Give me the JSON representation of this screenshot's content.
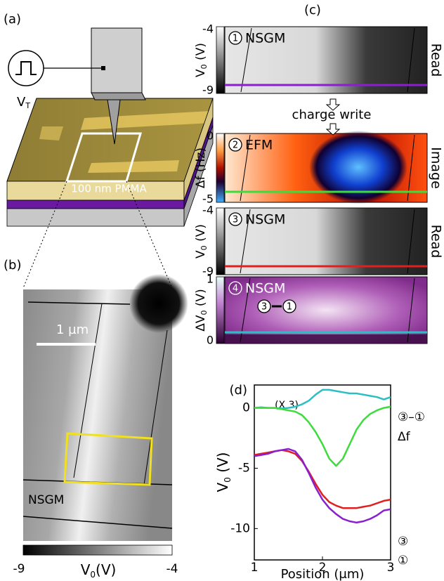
{
  "figure": {
    "a": {
      "label": "(a)",
      "pulse": "V",
      "pulse_sub": "T",
      "layer": "100 nm PMMA"
    },
    "b": {
      "label": "(b)",
      "scale_bar": "1 µm",
      "mode": "NSGM",
      "colorbar": {
        "min": -9,
        "max": -4,
        "title": "V",
        "title_sub": "0",
        "title_unit": "(V)"
      }
    },
    "c": {
      "label": "(c)",
      "step": "charge write",
      "rows": [
        {
          "number": "1",
          "mode": "NSGM",
          "action": "Read",
          "axis": "V",
          "axis_sub": "0",
          "axis_unit": " (V)",
          "max": -4,
          "min": -9
        },
        {
          "number": "2",
          "mode": "EFM",
          "action": "Image",
          "axis": "Δf (Hz)",
          "max": 0,
          "min": -5
        },
        {
          "number": "3",
          "mode": "NSGM",
          "action": "Read",
          "axis": "V",
          "axis_sub": "0",
          "axis_unit": " (V)",
          "max": -4,
          "min": -9
        },
        {
          "number": "4",
          "mode": "NSGM",
          "difference": [
            "3",
            "1"
          ],
          "axis": "ΔV",
          "axis_sub": "0",
          "axis_unit": " (V)",
          "max": 1,
          "min": 0
        }
      ]
    }
  },
  "chart_data": {
    "type": "line",
    "label": "(d)",
    "x_label": "Position (μm)",
    "y_label": "V",
    "y_label_sub": "0",
    "y_label_unit": " (V)",
    "annotation": "(X 3)",
    "x": [
      1,
      1.1,
      1.2,
      1.3,
      1.4,
      1.5,
      1.6,
      1.7,
      1.8,
      1.9,
      2,
      2.1,
      2.2,
      2.3,
      2.4,
      2.5,
      2.6,
      2.7,
      2.8,
      2.9,
      3
    ],
    "series": [
      {
        "name": "③–①",
        "color": "#2bbfc4",
        "values": [
          0,
          0.05,
          0,
          0,
          -0.05,
          0,
          0.1,
          0.3,
          0.6,
          1.1,
          1.5,
          1.5,
          1.4,
          1.3,
          1.2,
          1.2,
          1.1,
          1.0,
          0.9,
          0.7,
          0.9
        ]
      },
      {
        "name": "Δf",
        "color": "#3ddc3d",
        "values": [
          0,
          0,
          0,
          0,
          -0.1,
          -0.2,
          -0.3,
          -0.6,
          -1.2,
          -2,
          -3,
          -4.2,
          -4.8,
          -4.2,
          -3,
          -1.8,
          -1,
          -0.5,
          -0.2,
          0,
          0.1
        ]
      },
      {
        "name": "③",
        "color": "#e02020",
        "values": [
          -3.9,
          -3.8,
          -3.7,
          -3.6,
          -3.5,
          -3.6,
          -3.8,
          -4.4,
          -5.3,
          -6.3,
          -7.2,
          -7.8,
          -8.1,
          -8.3,
          -8.3,
          -8.3,
          -8.2,
          -8.1,
          -7.9,
          -7.7,
          -7.6
        ]
      },
      {
        "name": "①",
        "color": "#8a1fd0",
        "values": [
          -4,
          -3.9,
          -3.8,
          -3.6,
          -3.5,
          -3.4,
          -3.6,
          -4.3,
          -5.4,
          -6.6,
          -7.6,
          -8.3,
          -8.8,
          -9.2,
          -9.4,
          -9.5,
          -9.4,
          -9.2,
          -8.9,
          -8.5,
          -8.4
        ]
      }
    ],
    "xlim": [
      1,
      3
    ],
    "xticks": [
      1,
      2,
      3
    ],
    "ylim": [
      -12.6,
      1.9
    ],
    "yticks": [
      -10,
      -5,
      0
    ]
  }
}
